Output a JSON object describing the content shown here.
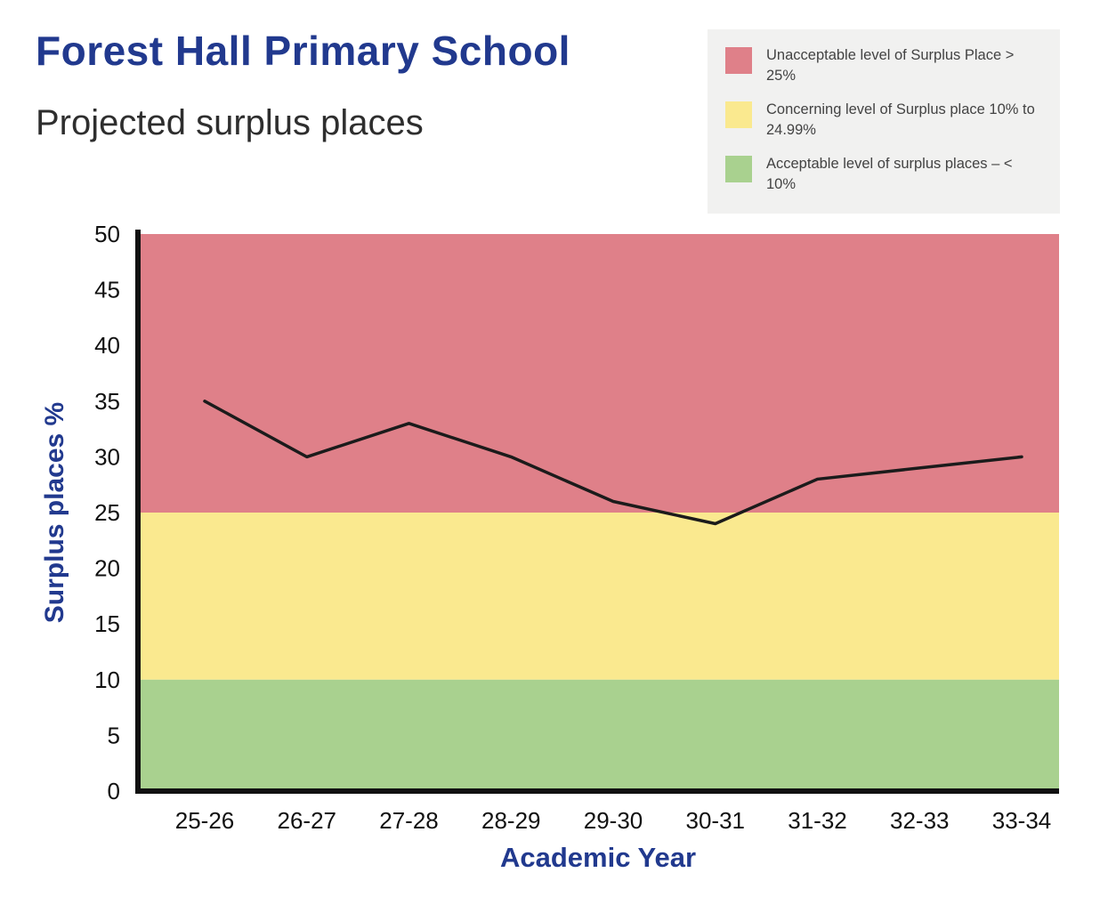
{
  "header": {
    "title": "Forest Hall Primary School",
    "subtitle": "Projected surplus places"
  },
  "legend": {
    "items": [
      {
        "name": "unacceptable",
        "color": "#df8089",
        "label": "Unacceptable level of Surplus Place > 25%"
      },
      {
        "name": "concerning",
        "color": "#fae98f",
        "label": "Concerning level of Surplus place 10% to 24.99%"
      },
      {
        "name": "acceptable",
        "color": "#a9d18f",
        "label": "Acceptable level of surplus places – < 10%"
      }
    ]
  },
  "chart_data": {
    "type": "line",
    "title": "Projected surplus places",
    "xlabel": "Academic Year",
    "ylabel": "Surplus places %",
    "categories": [
      "25-26",
      "26-27",
      "27-28",
      "28-29",
      "29-30",
      "30-31",
      "31-32",
      "32-33",
      "33-34"
    ],
    "series": [
      {
        "name": "Projected surplus places",
        "values": [
          35,
          30,
          33,
          30,
          26,
          24,
          28,
          29,
          30
        ]
      }
    ],
    "ylim": [
      0,
      50
    ],
    "yticks": [
      0,
      5,
      10,
      15,
      20,
      25,
      30,
      35,
      40,
      45,
      50
    ],
    "grid": false,
    "legend_position": "top-right",
    "line_color": "#1b1b1b",
    "axis_color": "#111111",
    "bands": [
      {
        "from": 25,
        "to": 50,
        "color": "#df8089",
        "label": "Unacceptable"
      },
      {
        "from": 10,
        "to": 25,
        "color": "#fae98f",
        "label": "Concerning"
      },
      {
        "from": 0,
        "to": 10,
        "color": "#a9d18f",
        "label": "Acceptable"
      }
    ]
  }
}
